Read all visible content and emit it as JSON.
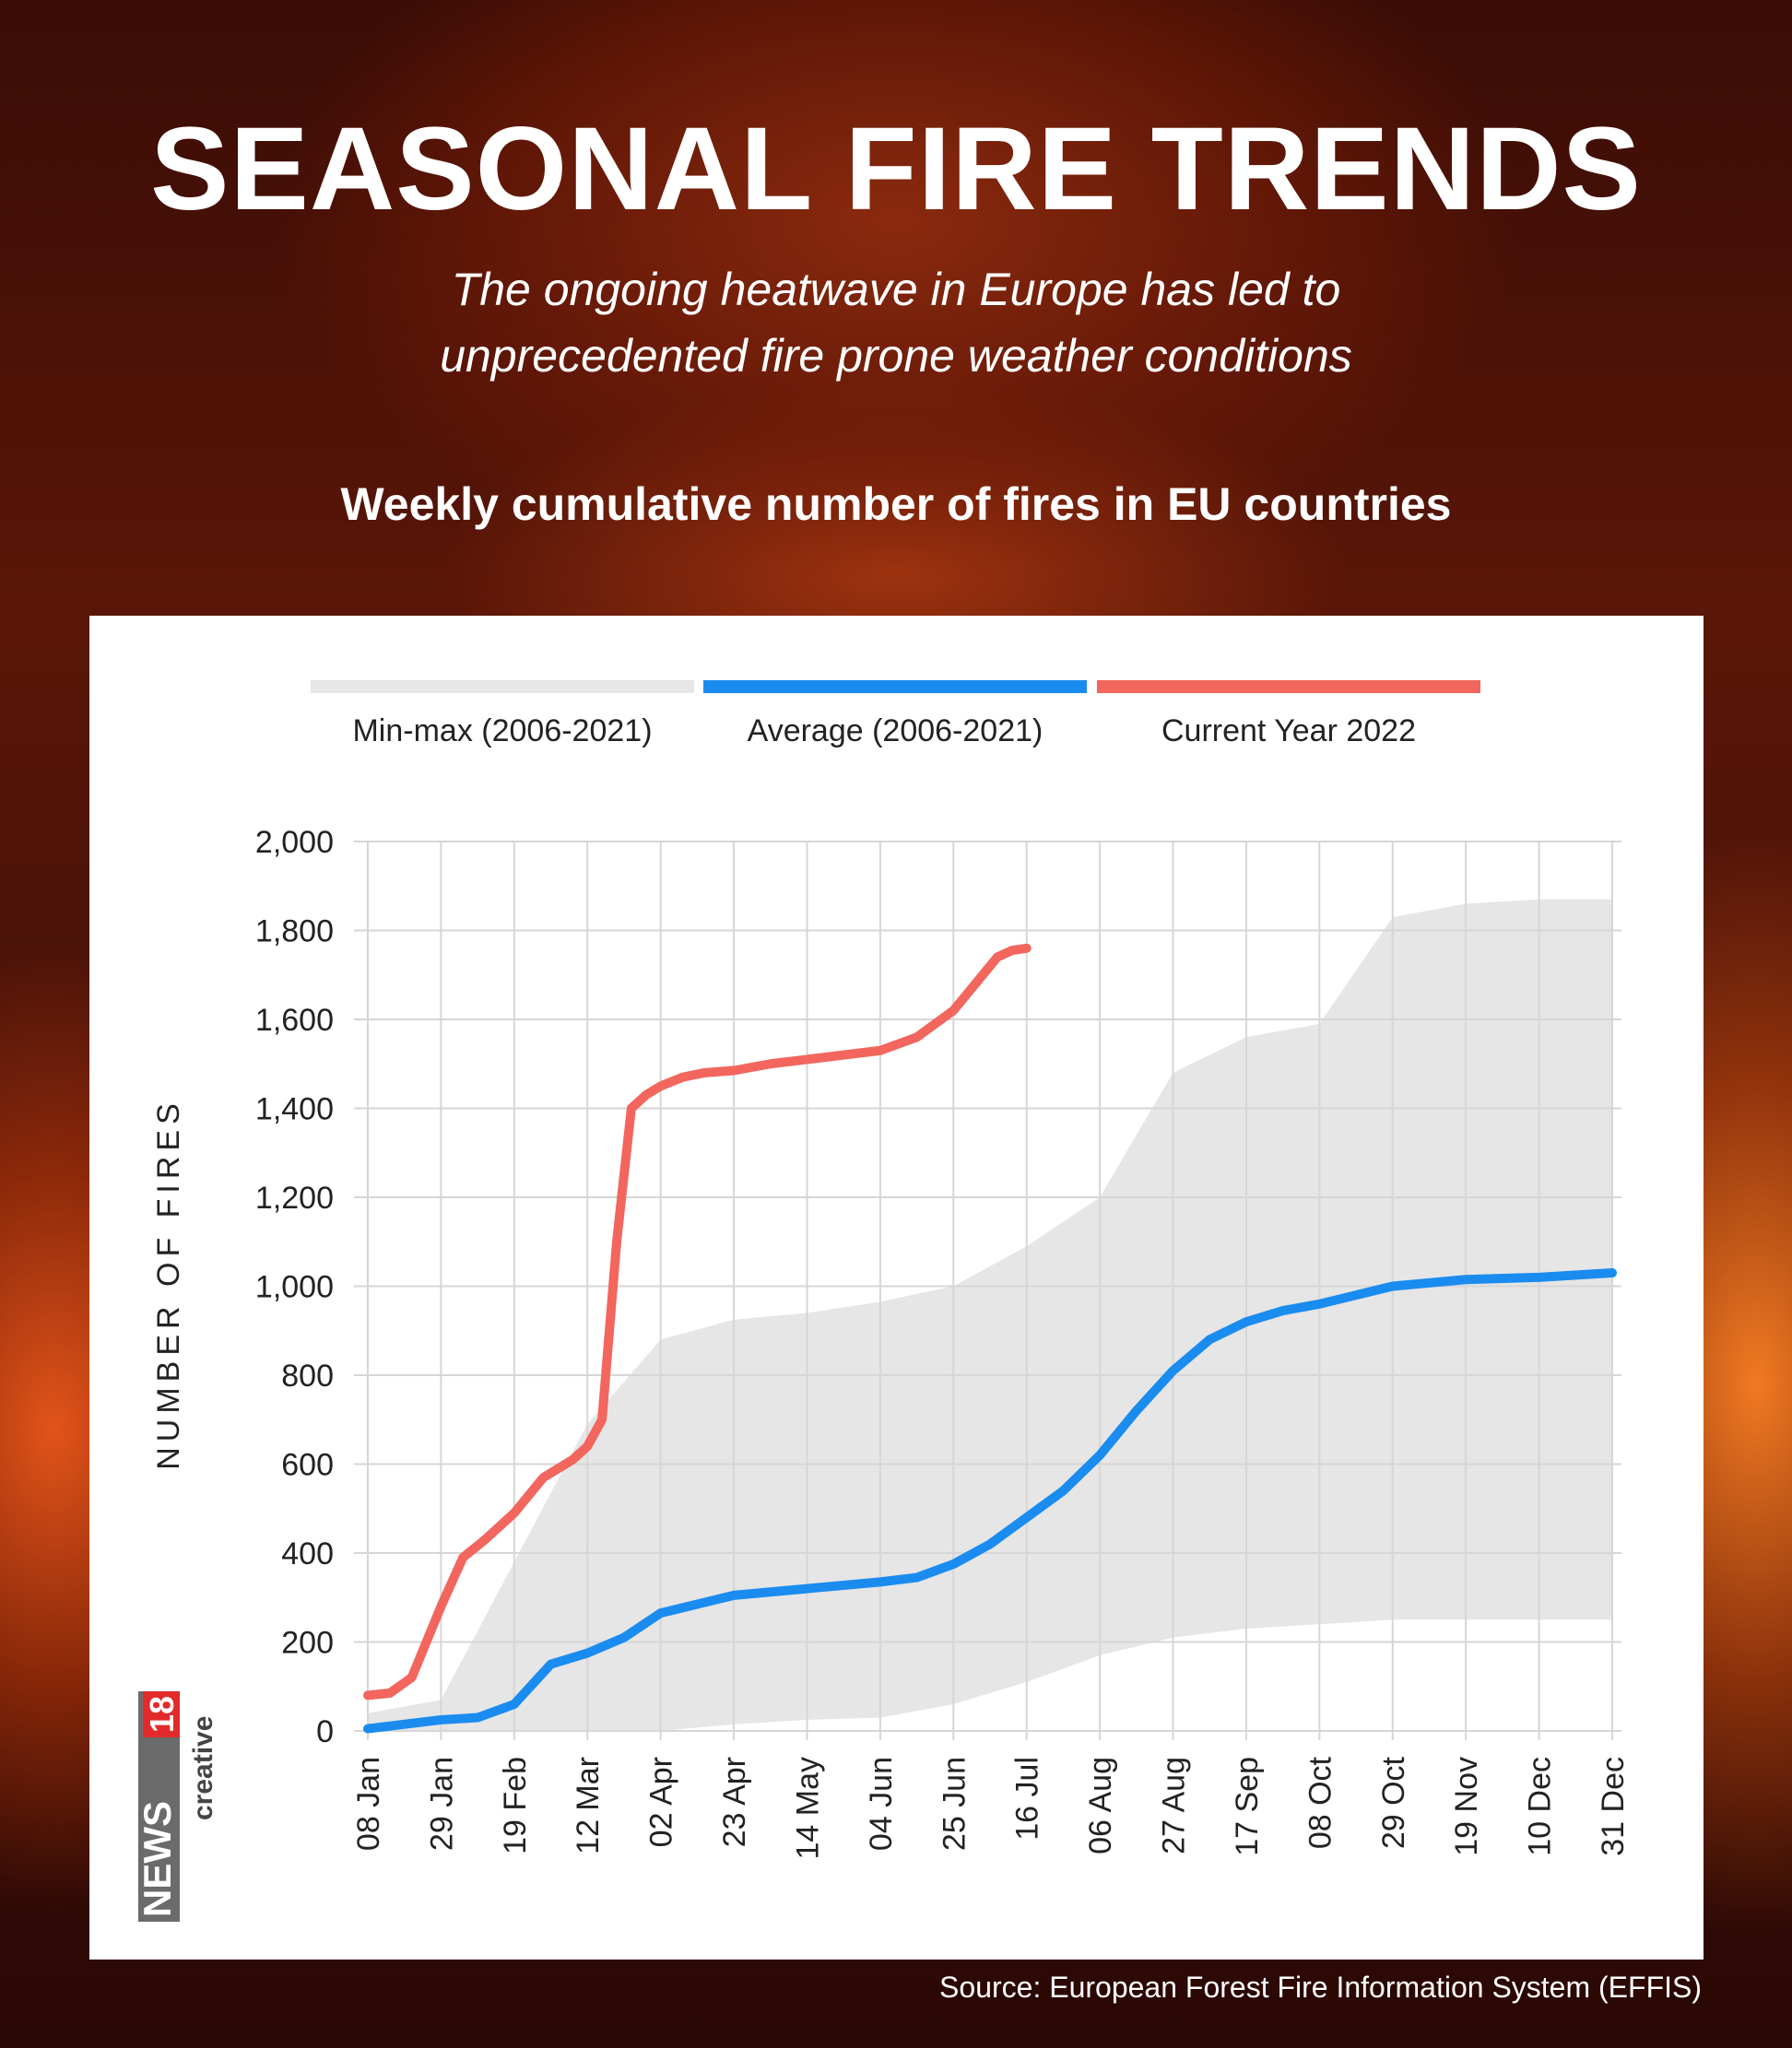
{
  "header": {
    "title": "SEASONAL FIRE TRENDS",
    "subtitle_line1": "The ongoing heatwave in Europe has led to",
    "subtitle_line2": "unprecedented fire prone weather conditions",
    "chart_heading": "Weekly cumulative number of fires in EU countries"
  },
  "source": "Source: European Forest Fire Information System (EFFIS)",
  "logo": {
    "brand": "NEWS",
    "number": "18",
    "tag": "creative"
  },
  "colors": {
    "minmax": "#e6e6e6",
    "average": "#1a8cf0",
    "current": "#f2665e",
    "grid": "#d6d6d6"
  },
  "chart_data": {
    "type": "line",
    "ylabel": "NUMBER OF FIRES",
    "ylim": [
      0,
      2000
    ],
    "yticks": [
      "0",
      "200",
      "400",
      "600",
      "800",
      "1,000",
      "1,200",
      "1,400",
      "1,600",
      "1,800",
      "2,000"
    ],
    "xticks": [
      "08 Jan",
      "29 Jan",
      "19 Feb",
      "12 Mar",
      "02 Apr",
      "23 Apr",
      "14 May",
      "04 Jun",
      "25 Jun",
      "16 Jul",
      "06 Aug",
      "27 Aug",
      "17 Sep",
      "08 Oct",
      "29 Oct",
      "19 Nov",
      "10 Dec",
      "31 Dec"
    ],
    "legend": [
      {
        "name": "Min-max (2006-2021)",
        "color": "#e6e6e6"
      },
      {
        "name": "Average (2006-2021)",
        "color": "#1a8cf0"
      },
      {
        "name": "Current Year 2022",
        "color": "#f2665e"
      }
    ],
    "series": [
      {
        "name": "Min-max (2006-2021)",
        "kind": "band",
        "x": [
          0,
          1,
          2,
          3,
          4,
          5,
          6,
          7,
          8,
          9,
          10,
          11,
          12,
          13,
          14,
          15,
          16,
          17
        ],
        "low": [
          0,
          0,
          0,
          0,
          0,
          15,
          25,
          30,
          60,
          110,
          170,
          210,
          230,
          240,
          250,
          250,
          250,
          250
        ],
        "high": [
          40,
          70,
          380,
          690,
          880,
          925,
          940,
          965,
          1000,
          1090,
          1200,
          1480,
          1560,
          1590,
          1830,
          1860,
          1870,
          1870
        ]
      },
      {
        "name": "Average (2006-2021)",
        "x": [
          0,
          1,
          1.5,
          2,
          2.5,
          3,
          3.5,
          4,
          4.5,
          5,
          6,
          7,
          7.5,
          8,
          8.5,
          9,
          9.5,
          10,
          10.5,
          11,
          11.5,
          12,
          12.5,
          13,
          14,
          15,
          16,
          17
        ],
        "values": [
          5,
          25,
          30,
          60,
          150,
          175,
          210,
          265,
          285,
          305,
          320,
          335,
          345,
          375,
          420,
          480,
          540,
          620,
          720,
          810,
          880,
          920,
          945,
          960,
          1000,
          1015,
          1020,
          1030
        ]
      },
      {
        "name": "Current Year 2022",
        "x": [
          0,
          0.3,
          0.6,
          1,
          1.3,
          1.6,
          2,
          2.4,
          2.8,
          3,
          3.2,
          3.4,
          3.6,
          3.8,
          4,
          4.3,
          4.6,
          5,
          5.5,
          6,
          6.5,
          7,
          7.5,
          8,
          8.3,
          8.6,
          8.8,
          9
        ],
        "values": [
          80,
          85,
          120,
          280,
          390,
          430,
          490,
          570,
          610,
          640,
          700,
          1100,
          1400,
          1430,
          1450,
          1470,
          1480,
          1485,
          1500,
          1510,
          1520,
          1530,
          1560,
          1620,
          1680,
          1740,
          1755,
          1760
        ]
      }
    ]
  }
}
